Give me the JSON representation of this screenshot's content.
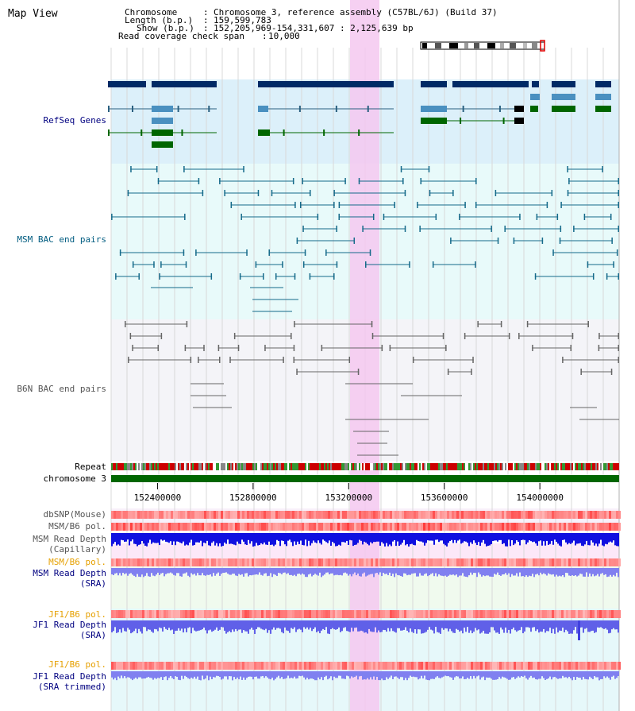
{
  "title": "Map View",
  "info": {
    "chromosome_label": "Chromosome",
    "chromosome_value": "Chromosome 3, reference assembly (C57BL/6J) (Build 37)",
    "length_label": "Length (b.p.)",
    "length_value": "159,599,783",
    "show_label": "Show (b.p.)",
    "show_value": "152,205,969-154,331,607 : 2,125,639 bp",
    "span_label": "Read coverage check span",
    "span_value": "10,000"
  },
  "tracks": {
    "refseq": "RefSeq Genes",
    "msm_bac": "MSM BAC end pairs",
    "b6n_bac": "B6N BAC end pairs",
    "repeat": "Repeat",
    "chromosome": "chromosome 3",
    "dbsnp": "dbSNP(Mouse)",
    "msm_b6_pol_1": "MSM/B6 pol.",
    "msm_depth_cap_1": "MSM Read Depth",
    "msm_depth_cap_2": "(Capillary)",
    "msm_b6_pol_2": "MSM/B6 pol.",
    "msm_depth_sra_1": "MSM Read Depth",
    "msm_depth_sra_2": "(SRA)",
    "jf1_b6_pol_1": "JF1/B6 pol.",
    "jf1_depth_sra_1": "JF1 Read Depth",
    "jf1_depth_sra_2": "(SRA)",
    "jf1_b6_pol_2": "JF1/B6 pol.",
    "jf1_depth_trim_1": "JF1 Read Depth",
    "jf1_depth_trim_2": "(SRA trimmed)"
  },
  "axis": {
    "start": 152205969,
    "end": 154331607,
    "ticks": [
      "152400000",
      "152800000",
      "153200000",
      "153600000",
      "154000000"
    ]
  },
  "colors": {
    "refseq_dark": "#002a66",
    "refseq_light": "#4a90c0",
    "refseq_green": "#006600",
    "msm_bac": "#156a8a",
    "b6n_bac": "#666666",
    "highlight": "#f4c8f0",
    "label_blue": "#000080",
    "label_teal": "#005c80",
    "label_orange": "#e6a000",
    "label_gray": "#555555",
    "chromosome_bar": "#006600"
  }
}
